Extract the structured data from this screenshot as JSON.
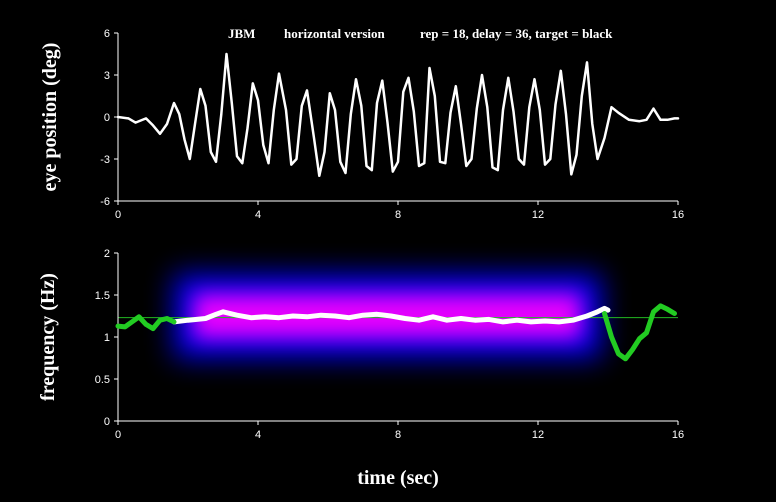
{
  "chart_data": [
    {
      "type": "line",
      "title_parts": [
        "JBM",
        "horizontal version",
        "rep = 18,  delay = 36, target = black"
      ],
      "ylabel": "eye position (deg)",
      "xlabel": "",
      "xlim": [
        0,
        16
      ],
      "ylim": [
        -6,
        6
      ],
      "xticks": [
        0,
        4,
        8,
        12,
        16
      ],
      "yticks": [
        -6,
        -3,
        0,
        3,
        6
      ],
      "line_color": "#ffffff",
      "series": [
        {
          "x": [
            0,
            0.3,
            0.5,
            0.8,
            1.0,
            1.2,
            1.4,
            1.6,
            1.75,
            1.9,
            2.05,
            2.2,
            2.35,
            2.5,
            2.65,
            2.8,
            2.95,
            3.1,
            3.25,
            3.4,
            3.55,
            3.7,
            3.85,
            4.0,
            4.15,
            4.3,
            4.45,
            4.6,
            4.8,
            4.95,
            5.1,
            5.25,
            5.4,
            5.6,
            5.75,
            5.9,
            6.05,
            6.2,
            6.35,
            6.5,
            6.65,
            6.8,
            6.95,
            7.1,
            7.25,
            7.4,
            7.55,
            7.7,
            7.85,
            8.0,
            8.15,
            8.3,
            8.45,
            8.6,
            8.75,
            8.9,
            9.05,
            9.2,
            9.35,
            9.5,
            9.65,
            9.8,
            9.95,
            10.1,
            10.25,
            10.4,
            10.55,
            10.7,
            10.85,
            11.0,
            11.15,
            11.3,
            11.45,
            11.6,
            11.75,
            11.9,
            12.05,
            12.2,
            12.35,
            12.5,
            12.65,
            12.8,
            12.95,
            13.1,
            13.25,
            13.4,
            13.55,
            13.7,
            13.9,
            14.1,
            14.3,
            14.6,
            14.9,
            15.1,
            15.3,
            15.5,
            15.7,
            15.9,
            16.0
          ],
          "y": [
            0,
            -0.1,
            -0.4,
            -0.1,
            -0.6,
            -1.2,
            -0.5,
            1.0,
            0.2,
            -1.6,
            -3.0,
            -0.5,
            2.0,
            0.8,
            -2.5,
            -3.2,
            0.2,
            4.5,
            1.0,
            -2.8,
            -3.3,
            -0.8,
            2.4,
            1.2,
            -2.0,
            -3.3,
            0.5,
            3.1,
            0.5,
            -3.4,
            -3.0,
            0.8,
            1.9,
            -1.5,
            -4.2,
            -2.5,
            1.7,
            0.5,
            -3.2,
            -4.0,
            0.2,
            2.7,
            0.8,
            -3.5,
            -3.8,
            1.0,
            2.6,
            -0.4,
            -3.9,
            -3.2,
            1.8,
            2.8,
            0.4,
            -3.5,
            -3.3,
            3.5,
            1.5,
            -3.2,
            -3.3,
            0.3,
            2.2,
            -0.5,
            -3.5,
            -3.0,
            0.6,
            3.0,
            0.7,
            -3.6,
            -3.8,
            0.5,
            2.8,
            0.4,
            -3.0,
            -3.4,
            0.7,
            2.7,
            0.5,
            -3.4,
            -3.0,
            0.9,
            3.3,
            0.2,
            -4.1,
            -2.7,
            1.5,
            3.9,
            -0.5,
            -3.0,
            -1.5,
            0.7,
            0.3,
            -0.2,
            -0.3,
            -0.2,
            0.6,
            -0.2,
            -0.2,
            -0.1,
            -0.1
          ]
        }
      ]
    },
    {
      "type": "line",
      "ylabel": "frequency (Hz)",
      "xlabel": "time (sec)",
      "xlim": [
        0,
        16
      ],
      "ylim": [
        0,
        2
      ],
      "xticks": [
        0,
        4,
        8,
        12,
        16
      ],
      "yticks": [
        0,
        0.5,
        1,
        1.5,
        2
      ],
      "yticklabels": [
        "0",
        "0.5",
        "1",
        "1.5",
        "2"
      ],
      "reference_line": {
        "y": 1.23,
        "color": "#22b822"
      },
      "spectrogram": {
        "x_range": [
          1.6,
          13.8
        ],
        "band_center_hz": 1.25,
        "colors": [
          "#0000ff",
          "#ff00ff"
        ]
      },
      "series": [
        {
          "name": "",
          "color": "#ffffff",
          "x": [
            1.6,
            2.0,
            2.5,
            2.8,
            3.0,
            3.4,
            3.8,
            4.2,
            4.6,
            5.0,
            5.4,
            5.8,
            6.2,
            6.6,
            7.0,
            7.4,
            7.8,
            8.2,
            8.6,
            9.0,
            9.4,
            9.8,
            10.2,
            10.6,
            11.0,
            11.4,
            11.8,
            12.2,
            12.6,
            13.0,
            13.4,
            13.7,
            13.9,
            14.0
          ],
          "y": [
            1.18,
            1.2,
            1.22,
            1.27,
            1.3,
            1.26,
            1.23,
            1.24,
            1.23,
            1.25,
            1.24,
            1.26,
            1.25,
            1.23,
            1.26,
            1.27,
            1.25,
            1.22,
            1.2,
            1.24,
            1.2,
            1.22,
            1.2,
            1.21,
            1.18,
            1.2,
            1.18,
            1.19,
            1.18,
            1.2,
            1.25,
            1.3,
            1.34,
            1.32
          ]
        },
        {
          "name": "",
          "color": "#22cc22",
          "x": [
            0,
            0.2,
            0.4,
            0.6,
            0.8,
            1.0,
            1.2,
            1.4,
            1.6
          ],
          "y": [
            1.13,
            1.12,
            1.18,
            1.24,
            1.15,
            1.1,
            1.2,
            1.22,
            1.18
          ]
        },
        {
          "name": "",
          "color": "#22cc22",
          "x": [
            13.9,
            14.1,
            14.3,
            14.5,
            14.7,
            14.9,
            15.1,
            15.3,
            15.5,
            15.7,
            15.9
          ],
          "y": [
            1.28,
            1.0,
            0.8,
            0.74,
            0.85,
            0.98,
            1.05,
            1.3,
            1.37,
            1.33,
            1.28
          ]
        }
      ]
    }
  ]
}
